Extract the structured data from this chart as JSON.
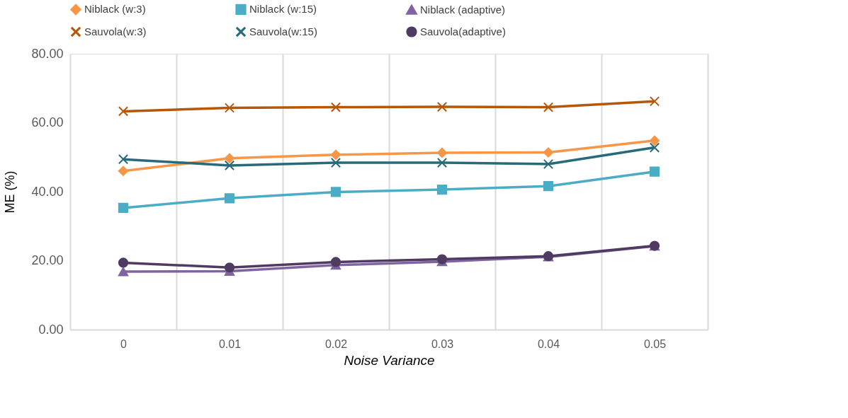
{
  "chart_data": {
    "type": "line",
    "categories": [
      "0",
      "0.01",
      "0.02",
      "0.03",
      "0.04",
      "0.05"
    ],
    "series": [
      {
        "name": "Niblack (w:3)",
        "color": "#f79646",
        "marker": "diamond",
        "values": [
          46.0,
          49.7,
          50.7,
          51.3,
          51.4,
          54.8
        ]
      },
      {
        "name": "Niblack (w:15)",
        "color": "#4bacc6",
        "marker": "square",
        "values": [
          35.3,
          38.1,
          39.9,
          40.6,
          41.6,
          45.8
        ]
      },
      {
        "name": "Niblack (adaptive)",
        "color": "#8064a2",
        "marker": "triangle",
        "values": [
          16.8,
          16.9,
          18.7,
          19.7,
          21.1,
          24.2
        ]
      },
      {
        "name": "Sauvola(w:3)",
        "color": "#b65708",
        "marker": "cross",
        "values": [
          63.3,
          64.3,
          64.5,
          64.6,
          64.5,
          66.2
        ]
      },
      {
        "name": "Sauvola(w:15)",
        "color": "#276a7c",
        "marker": "cross",
        "values": [
          49.4,
          47.6,
          48.4,
          48.4,
          48.0,
          52.8
        ]
      },
      {
        "name": "Sauvola(adaptive)",
        "color": "#4f3b62",
        "marker": "circle",
        "values": [
          19.4,
          18.0,
          19.6,
          20.4,
          21.3,
          24.3
        ]
      }
    ],
    "xlabel": "Noise Variance",
    "ylabel": "ME (%)",
    "ylim": [
      0,
      80
    ],
    "yticks": [
      {
        "value": 0,
        "label": "0.00"
      },
      {
        "value": 20,
        "label": "20.00"
      },
      {
        "value": 40,
        "label": "40.00"
      },
      {
        "value": 60,
        "label": "60.00"
      },
      {
        "value": 80,
        "label": "80.00"
      }
    ],
    "grid": "x",
    "legend": "top",
    "line_style": "solid"
  }
}
